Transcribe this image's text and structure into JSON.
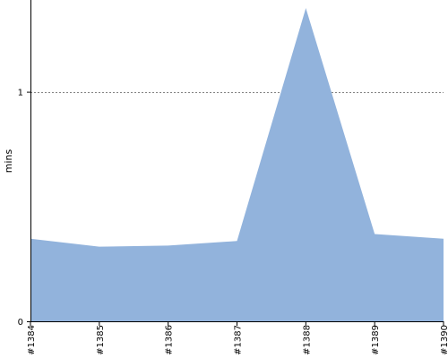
{
  "chart_data": {
    "type": "area",
    "categories": [
      "#1384",
      "#1385",
      "#1386",
      "#1387",
      "#1388",
      "#1389",
      "#1390"
    ],
    "series": [
      {
        "values": [
          0.36,
          0.325,
          0.33,
          0.35,
          1.365,
          0.38,
          0.36
        ]
      }
    ],
    "ylabel": "mins",
    "ylim": [
      0,
      1.4
    ],
    "yticks": [
      {
        "value": 0,
        "label": "0"
      },
      {
        "value": 1,
        "label": "1"
      }
    ],
    "gridlines": [
      1
    ],
    "grid": true,
    "legend": "none",
    "colors": {
      "fill": "#92b3dc",
      "axis": "#000000",
      "grid": "#555555"
    }
  }
}
